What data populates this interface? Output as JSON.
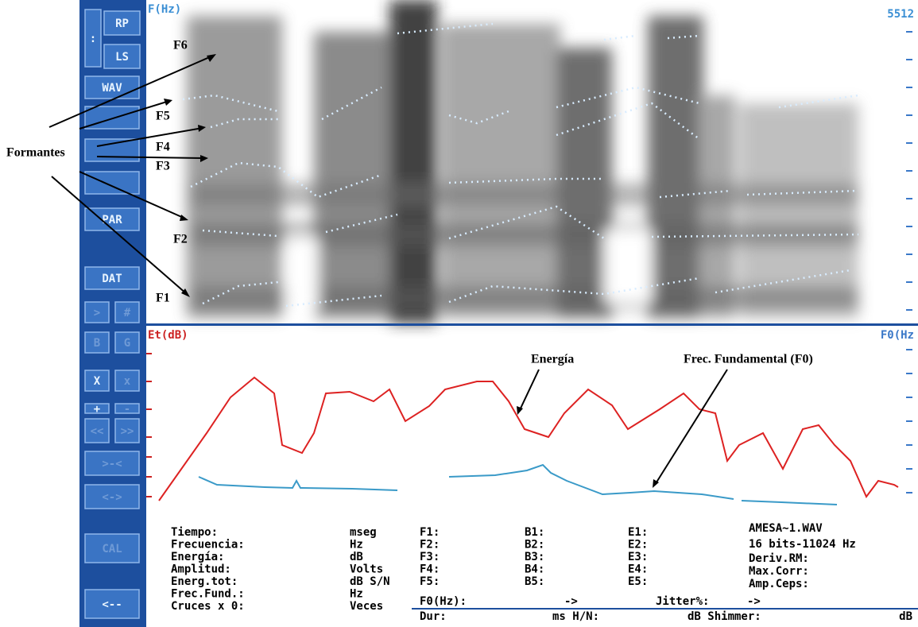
{
  "annotations": {
    "formantes": "Formantes",
    "formant_labels": [
      "F6",
      "F5",
      "F4",
      "F3",
      "F2",
      "F1"
    ],
    "energia": "Energía",
    "f0": "Frec. Fundamental (F0)"
  },
  "sidebar": {
    "buttons": [
      ":",
      "RP",
      "LS",
      "WAV",
      "PAR",
      "DAT",
      ">",
      "#",
      "B",
      "G",
      "X",
      "x",
      "+",
      "-",
      "<<",
      ">>",
      ">-<",
      "<->",
      "CAL",
      "<--"
    ]
  },
  "spectrogram": {
    "axis_label": "F(Hz)",
    "max_label": "5512"
  },
  "energy_panel": {
    "left_label": "Et(dB)",
    "right_label": "F0(Hz",
    "xlim": [
      0,
      960
    ],
    "ylim": [
      0,
      240
    ],
    "energy": {
      "x": [
        17,
        77,
        107,
        137,
        162,
        172,
        197,
        212,
        227,
        257,
        287,
        307,
        327,
        357,
        377,
        417,
        437,
        457,
        477,
        507,
        527,
        557,
        587,
        607,
        647,
        677,
        697,
        717,
        732,
        747,
        777,
        802,
        827,
        847,
        867,
        887,
        907,
        922,
        942,
        947
      ],
      "values": [
        20,
        105,
        150,
        175,
        155,
        90,
        80,
        105,
        155,
        157,
        145,
        160,
        120,
        139,
        160,
        170,
        170,
        145,
        110,
        100,
        130,
        160,
        140,
        110,
        135,
        155,
        135,
        130,
        70,
        90,
        105,
        60,
        110,
        115,
        90,
        70,
        25,
        45,
        40,
        37
      ]
    },
    "f0": {
      "x": [
        67,
        90,
        150,
        185,
        190,
        195,
        260,
        317,
        335,
        382,
        440,
        480,
        500,
        510,
        530,
        575,
        610,
        640,
        700,
        740,
        745,
        750,
        800,
        870
      ],
      "values": [
        50,
        40,
        37,
        36,
        45,
        36,
        35,
        33,
        null,
        50,
        52,
        58,
        65,
        55,
        45,
        28,
        30,
        32,
        28,
        22,
        null,
        20,
        18,
        15
      ]
    }
  },
  "info": {
    "measures": [
      {
        "label": "Tiempo:",
        "unit": "mseg"
      },
      {
        "label": "Frecuencia:",
        "unit": "Hz"
      },
      {
        "label": "Energía:",
        "unit": "dB"
      },
      {
        "label": "Amplitud:",
        "unit": "Volts"
      },
      {
        "label": "Energ.tot:",
        "unit": "dB S/N"
      },
      {
        "label": "Frec.Fund.:",
        "unit": "Hz"
      },
      {
        "label": "Cruces x 0:",
        "unit": "Veces"
      }
    ],
    "formants": [
      [
        "F1:",
        "B1:",
        "E1:"
      ],
      [
        "F2:",
        "B2:",
        "E2:"
      ],
      [
        "F3:",
        "B3:",
        "E3:"
      ],
      [
        "F4:",
        "B4:",
        "E4:"
      ],
      [
        "F5:",
        "B5:",
        "E5:"
      ]
    ],
    "f0_row": [
      "F0(Hz):",
      "->",
      "Jitter%:",
      "->"
    ],
    "dur_row": [
      "Dur:",
      "ms H/N:",
      "dB Shimmer:",
      "dB"
    ],
    "file": [
      "AMESA~1.WAV",
      "16 bits-11024 Hz",
      "Deriv.RM:",
      "Max.Corr:",
      "Amp.Ceps:"
    ]
  }
}
